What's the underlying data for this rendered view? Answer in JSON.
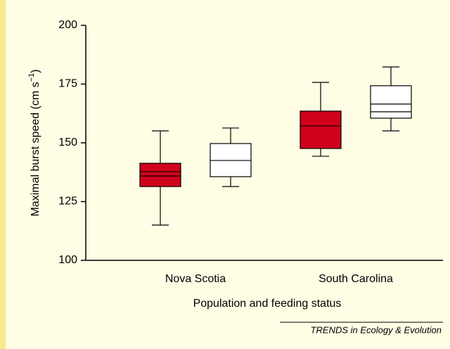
{
  "chart_data": {
    "type": "box",
    "y_label": {
      "text": "Maximal burst speed (cm s",
      "superscript": "−1",
      "close": ")"
    },
    "x_label": "Population and feeding status",
    "categories": [
      "Nova Scotia",
      "South Carolina"
    ],
    "ylim": [
      100,
      200
    ],
    "yticks": [
      100,
      125,
      150,
      175,
      200
    ],
    "series": [
      {
        "color": "#d0021b",
        "boxes": [
          {
            "low": 115,
            "q1": 131.4,
            "q3": 141.3,
            "high": 155.1,
            "lines": [
              135.9,
              137.7
            ]
          },
          {
            "low": 144.3,
            "q1": 147.6,
            "q3": 163.5,
            "high": 175.7,
            "lines": [
              157.2
            ]
          }
        ]
      },
      {
        "color": "#ffffff",
        "boxes": [
          {
            "low": 131.4,
            "q1": 135.6,
            "q3": 149.7,
            "high": 156.3,
            "lines": [
              142.5
            ]
          },
          {
            "low": 155.1,
            "q1": 160.5,
            "q3": 174.3,
            "high": 182.3,
            "lines": [
              163.2,
              166.5
            ]
          }
        ]
      }
    ],
    "footer": "TRENDS in Ecology & Evolution"
  }
}
